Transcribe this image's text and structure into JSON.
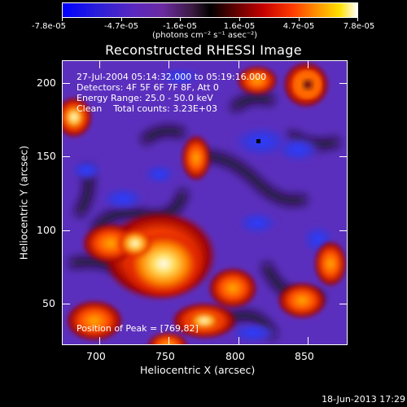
{
  "colorbar": {
    "tick_labels": [
      "-7.8e-05",
      "-4.7e-05",
      "-1.6e-05",
      "1.6e-05",
      "4.7e-05",
      "7.8e-05"
    ],
    "units_label": "(photons cm⁻² s⁻¹ asec⁻²)"
  },
  "chart_data": {
    "type": "heatmap",
    "title": "Reconstructed RHESSI Image",
    "xlabel": "Heliocentric X (arcsec)",
    "ylabel": "Heliocentric Y (arcsec)",
    "xlim": [
      677,
      869
    ],
    "ylim": [
      21,
      215
    ],
    "x_ticks": [
      700,
      750,
      800,
      850
    ],
    "y_ticks": [
      50,
      100,
      150,
      200
    ],
    "x_tick_labels": [
      "700",
      "750",
      "800",
      "850"
    ],
    "y_tick_labels": [
      "50",
      "100",
      "150",
      "200"
    ],
    "color_range": [
      -7.8e-05,
      7.8e-05
    ],
    "colormap": "blue-purple-red-orange-yellow-white",
    "annotations": [
      "27-Jul-2004 05:14:32.000 to 05:19:16.000",
      "Detectors: 4F 5F 6F 7F 8F, Att 0",
      "Energy Range: 25.0 - 50.0 keV",
      "Clean    Total counts: 3.23E+03"
    ],
    "peak_label": "Position of Peak = [769,82]",
    "peak_position": [
      769,
      82
    ],
    "marker_position": [
      810,
      159
    ]
  },
  "footer": {
    "timestamp": "18-Jun-2013 17:29"
  }
}
